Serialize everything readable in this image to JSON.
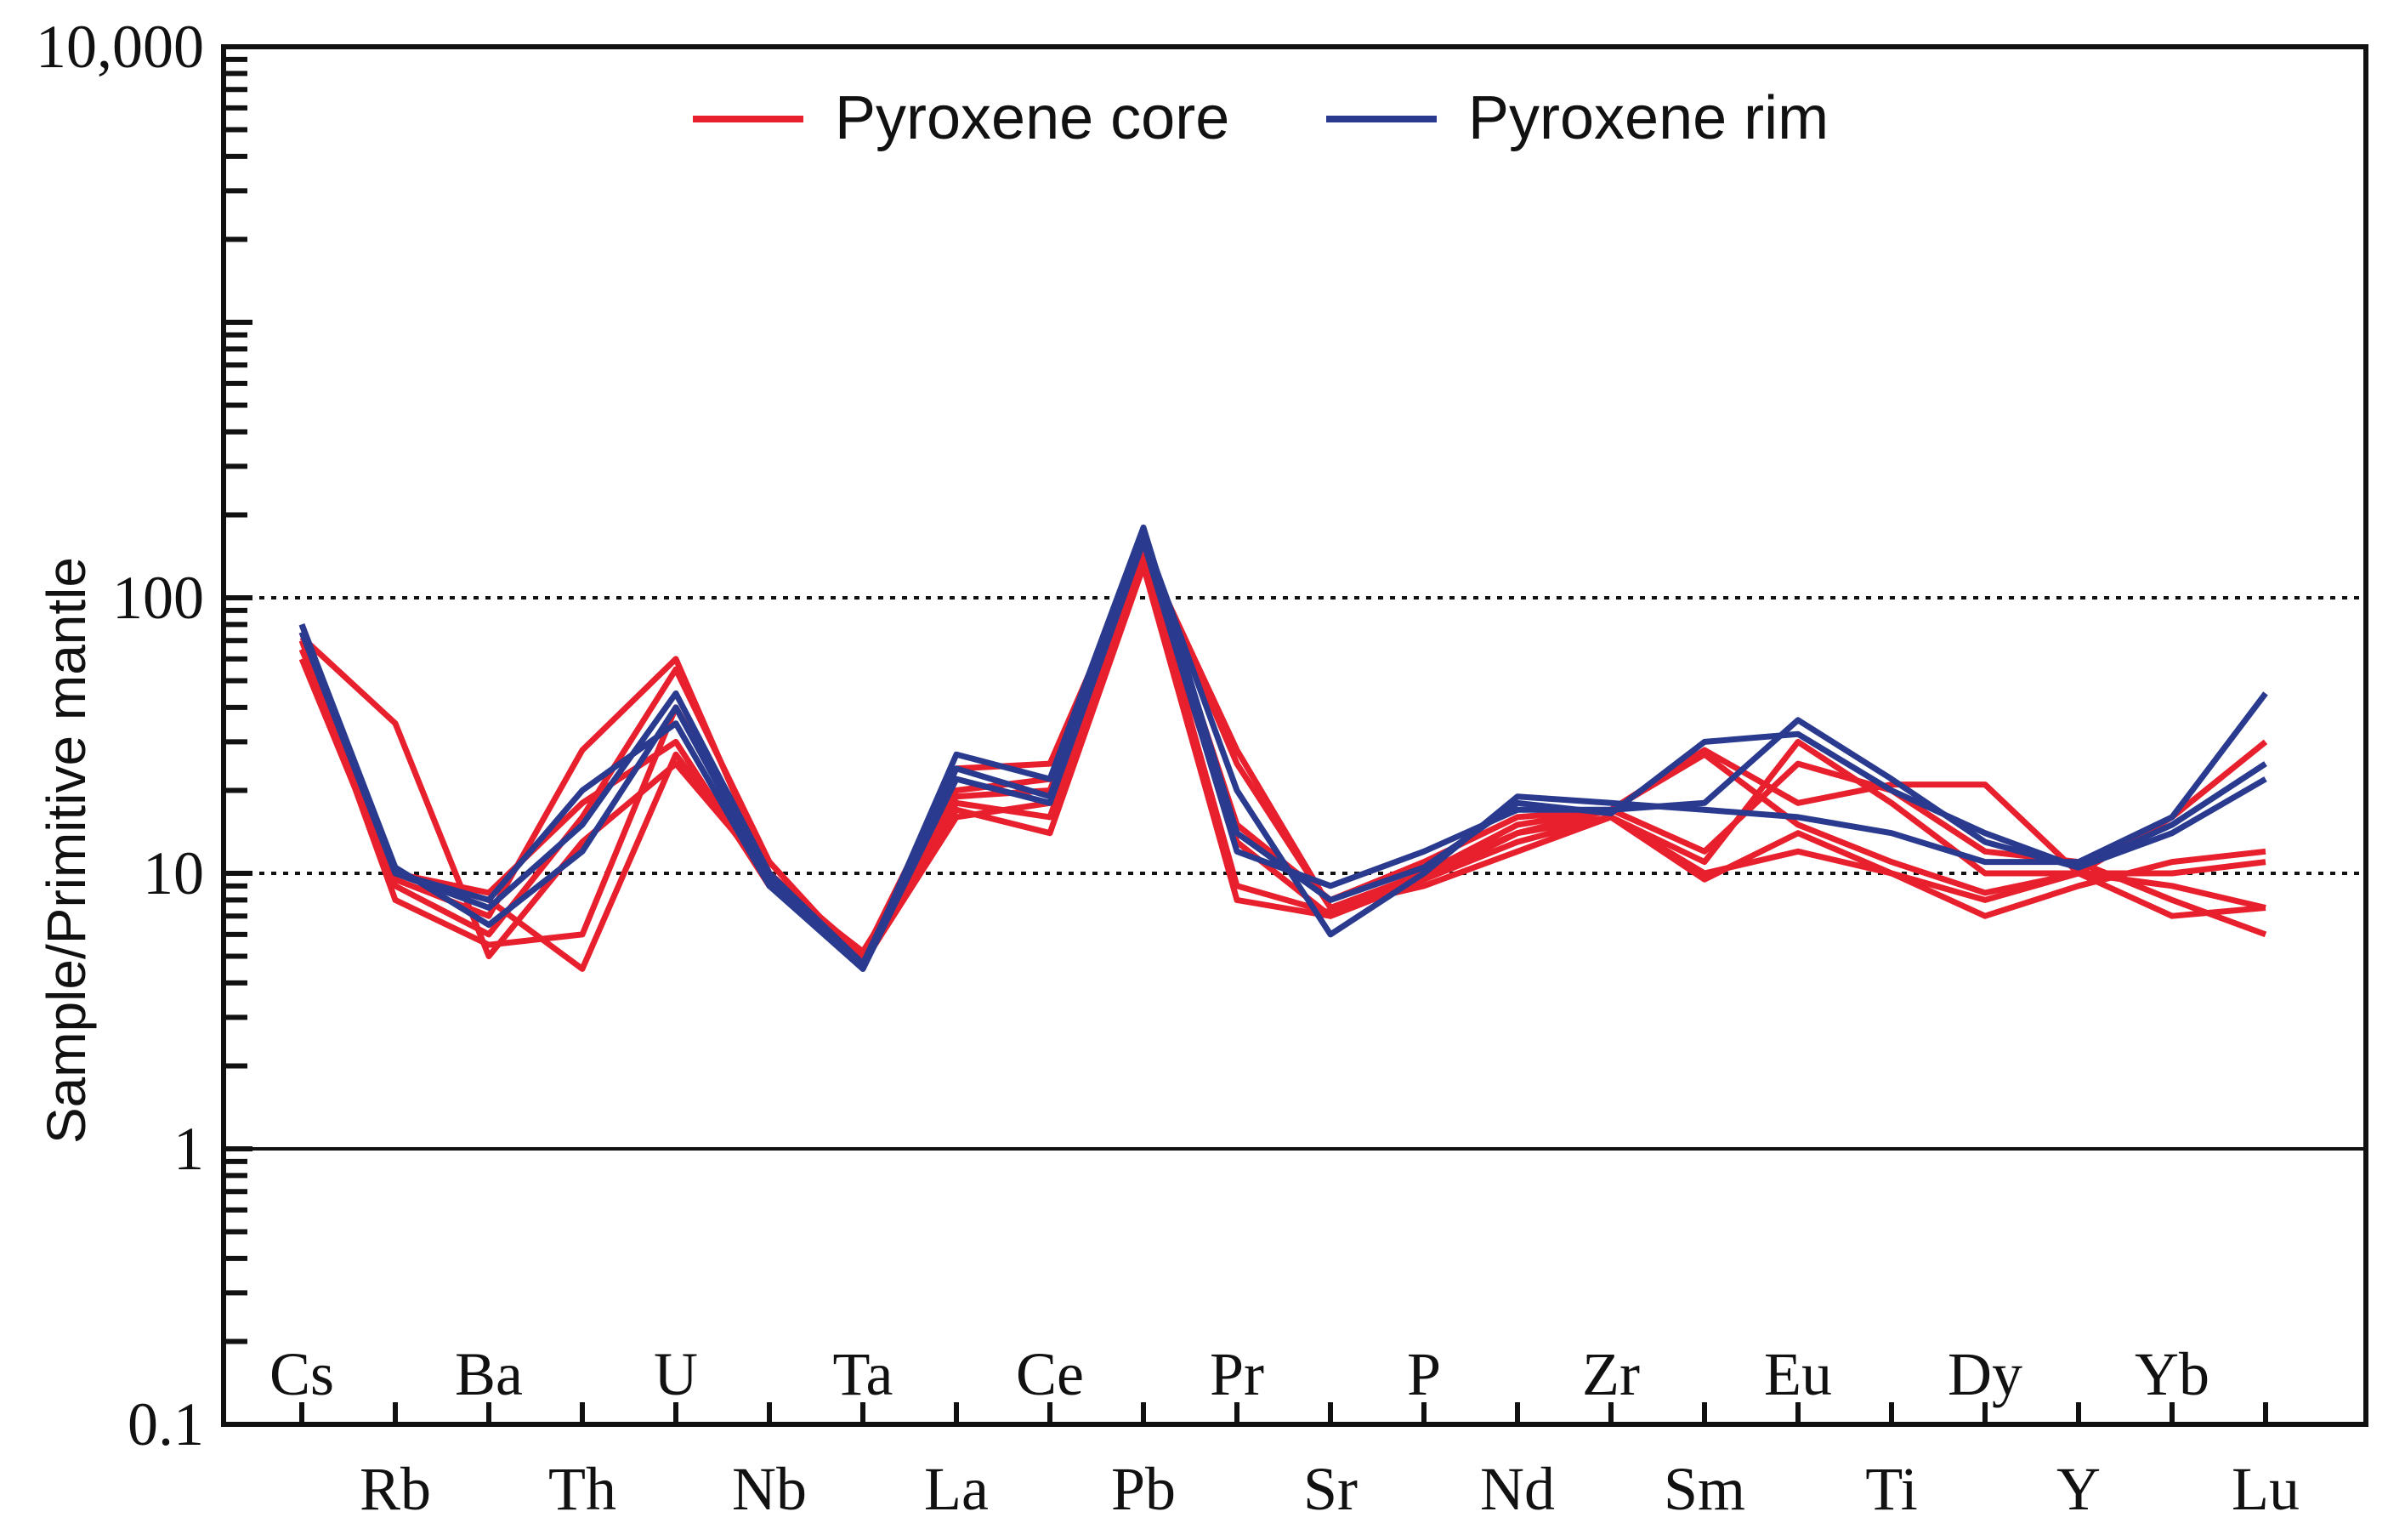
{
  "chart_data": {
    "type": "line",
    "ylabel": "Sample/Primitive mantle",
    "yscale": "log",
    "ylim": [
      0.1,
      10000
    ],
    "y_tick_labels": [
      "0.1",
      "1",
      "10",
      "100",
      "10,000"
    ],
    "y_tick_values": [
      0.1,
      1,
      10,
      100,
      10000
    ],
    "reference_lines": [
      {
        "value": 1,
        "style": "solid"
      },
      {
        "value": 10,
        "style": "dotted"
      },
      {
        "value": 100,
        "style": "dotted"
      }
    ],
    "categories": [
      "Cs",
      "Rb",
      "Ba",
      "Th",
      "U",
      "Nb",
      "Ta",
      "La",
      "Ce",
      "Pb",
      "Pr",
      "Sr",
      "P",
      "Nd",
      "Zr",
      "Sm",
      "Eu",
      "Ti",
      "Dy",
      "Y",
      "Yb",
      "Lu"
    ],
    "legend": [
      {
        "name": "Pyroxene core",
        "color": "#e8202e"
      },
      {
        "name": "Pyroxene rim",
        "color": "#2a3a8f"
      }
    ],
    "legend_position": "top-center",
    "series": [
      {
        "group": "Pyroxene core",
        "values": [
          75,
          9.5,
          7,
          28,
          60,
          10,
          5,
          24,
          25,
          150,
          28,
          7.5,
          10,
          15,
          17,
          27,
          15,
          11,
          8.5,
          10,
          7,
          7.5
        ]
      },
      {
        "group": "Pyroxene core",
        "values": [
          65,
          10,
          8.5,
          18,
          30,
          9,
          4.8,
          20,
          22,
          140,
          13,
          7,
          9.5,
          13,
          16,
          10,
          12,
          10,
          7,
          9,
          11,
          12
        ]
      },
      {
        "group": "Pyroxene core",
        "values": [
          70,
          8,
          5.5,
          6,
          40,
          10,
          5,
          17,
          14,
          130,
          8,
          7,
          9.5,
          14,
          16,
          9.5,
          14,
          10,
          8,
          10,
          10,
          11
        ]
      },
      {
        "group": "Pyroxene core",
        "values": [
          60,
          9,
          6,
          16,
          55,
          11,
          4.7,
          16,
          18,
          160,
          15,
          8,
          11,
          16,
          17,
          12,
          25,
          20,
          12,
          11,
          8,
          6
        ]
      },
      {
        "group": "Pyroxene core",
        "values": [
          80,
          10,
          8,
          4.5,
          27,
          9.5,
          5.2,
          18,
          16,
          145,
          9,
          7.2,
          10,
          14,
          17,
          28,
          18,
          21,
          21,
          10,
          9,
          7.5
        ]
      },
      {
        "group": "Pyroxene core",
        "values": [
          72,
          35,
          5,
          13,
          25,
          10,
          5.1,
          19,
          20,
          155,
          25,
          7.5,
          9,
          12,
          16,
          11,
          30,
          18,
          10,
          10,
          16,
          30
        ]
      },
      {
        "group": "Pyroxene rim",
        "values": [
          80,
          10,
          8,
          20,
          35,
          9,
          4.5,
          27,
          22,
          180,
          14,
          8,
          10.5,
          18,
          16.5,
          30,
          32,
          20,
          14,
          10.5,
          14,
          22
        ]
      },
      {
        "group": "Pyroxene rim",
        "values": [
          75,
          10,
          7.5,
          15,
          45,
          10,
          4.7,
          24,
          19,
          170,
          20,
          6,
          10,
          19,
          18,
          17,
          16,
          14,
          11,
          11,
          16,
          45
        ]
      },
      {
        "group": "Pyroxene rim",
        "values": [
          80,
          10.5,
          6.5,
          12,
          40,
          9.5,
          4.5,
          22,
          18,
          160,
          12,
          9,
          12,
          17,
          17,
          18,
          36,
          22,
          13,
          10.5,
          15,
          25
        ]
      }
    ]
  }
}
